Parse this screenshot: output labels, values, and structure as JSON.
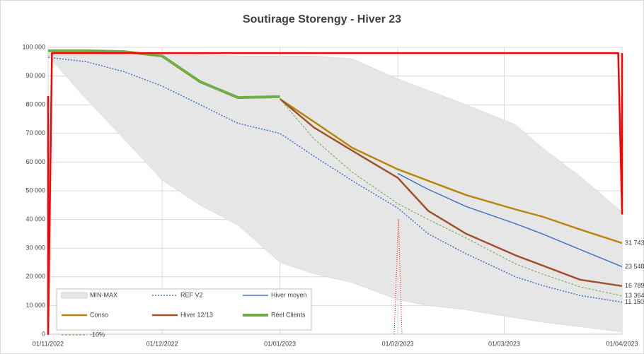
{
  "chart_data": {
    "type": "line",
    "title": "Soutirage Storengy - Hiver 23",
    "x": [
      "01/11/2022",
      "11/11/2022",
      "21/11/2022",
      "01/12/2022",
      "11/12/2022",
      "21/12/2022",
      "01/01/2023",
      "10/01/2023",
      "20/01/2023",
      "01/02/2023",
      "09/02/2023",
      "19/02/2023",
      "04/03/2023",
      "11/03/2023",
      "21/03/2023",
      "01/04/2023"
    ],
    "xlim": [
      "01/11/2022",
      "01/04/2023"
    ],
    "xticks": [
      "01/11/2022",
      "01/12/2022",
      "01/01/2023",
      "01/02/2023",
      "01/03/2023",
      "01/04/2023"
    ],
    "ylim": [
      0,
      100000
    ],
    "yticks": [
      0,
      {
        "value": 10000,
        "label": "10 000"
      },
      {
        "value": 20000,
        "label": "20 000"
      },
      {
        "value": 30000,
        "label": "30 000"
      },
      {
        "value": 40000,
        "label": "40 000"
      },
      {
        "value": 50000,
        "label": "50 000"
      },
      {
        "value": 60000,
        "label": "60 000"
      },
      {
        "value": 70000,
        "label": "70 000"
      },
      {
        "value": 80000,
        "label": "80 000"
      },
      {
        "value": 90000,
        "label": "90 000"
      },
      {
        "value": 100000,
        "label": "100 000"
      }
    ],
    "grid": true,
    "legend": "bottom-left",
    "series": [
      {
        "name": "MIN-MAX",
        "kind": "band",
        "color": "#e6e6e6",
        "values": [
          97000,
          82000,
          68000,
          53700,
          45000,
          38000,
          25000,
          21000,
          18000,
          12000,
          10000,
          8500,
          5700,
          4200,
          2600,
          800
        ],
        "values_max": [
          98000,
          98000,
          98000,
          97500,
          97500,
          97000,
          97000,
          97000,
          96000,
          89000,
          85000,
          80000,
          73000,
          65000,
          55000,
          42600
        ]
      },
      {
        "name": "REF V2",
        "color": "#4472c4",
        "dash": "2,2",
        "width": 1.5,
        "values": [
          96500,
          95000,
          91500,
          86500,
          80000,
          73500,
          70000,
          62000,
          53500,
          44000,
          35000,
          28000,
          20000,
          17000,
          13500,
          11150
        ],
        "last_label": "11 150"
      },
      {
        "name": "Hiver moyen",
        "color": "#4472c4",
        "width": 1.5,
        "values": [
          null,
          null,
          null,
          null,
          null,
          null,
          null,
          null,
          null,
          56000,
          50500,
          44500,
          38500,
          35000,
          29500,
          23548
        ],
        "last_label": "23 548"
      },
      {
        "name": "Conso",
        "color": "#b8860b",
        "width": 2.5,
        "values": [
          null,
          null,
          null,
          null,
          null,
          null,
          82000,
          74000,
          65000,
          57500,
          53500,
          48500,
          43500,
          41000,
          36500,
          31743
        ],
        "last_label": "31 743"
      },
      {
        "name": "Hiver 12/13",
        "color": "#a0522d",
        "width": 2.5,
        "values": [
          null,
          null,
          null,
          null,
          null,
          null,
          82000,
          72000,
          64000,
          54500,
          43000,
          35000,
          27500,
          24000,
          19000,
          16789
        ],
        "last_label": "16 789"
      },
      {
        "name": "Réel Clients",
        "color": "#70ad47",
        "width": 4,
        "values": [
          98800,
          98800,
          98500,
          97000,
          88000,
          82500,
          82800,
          null,
          null,
          null,
          null,
          null,
          null,
          null,
          null,
          null
        ]
      },
      {
        "name": "-10%",
        "color": "#70ad47",
        "dash": "3,2",
        "width": 1,
        "values": [
          null,
          null,
          null,
          null,
          null,
          null,
          82000,
          68000,
          56500,
          45500,
          40000,
          33500,
          24500,
          21000,
          16500,
          13364
        ],
        "last_label": "13 364"
      },
      {
        "color": "#ff0000",
        "width": 2.5,
        "x": [
          "01/11/2022",
          "01/11/2022",
          "02/11/2022",
          "31/03/2023",
          "01/04/2023",
          "01/04/2023"
        ],
        "values": [
          83000,
          0,
          98000,
          98000,
          42000,
          98000
        ]
      }
    ]
  }
}
